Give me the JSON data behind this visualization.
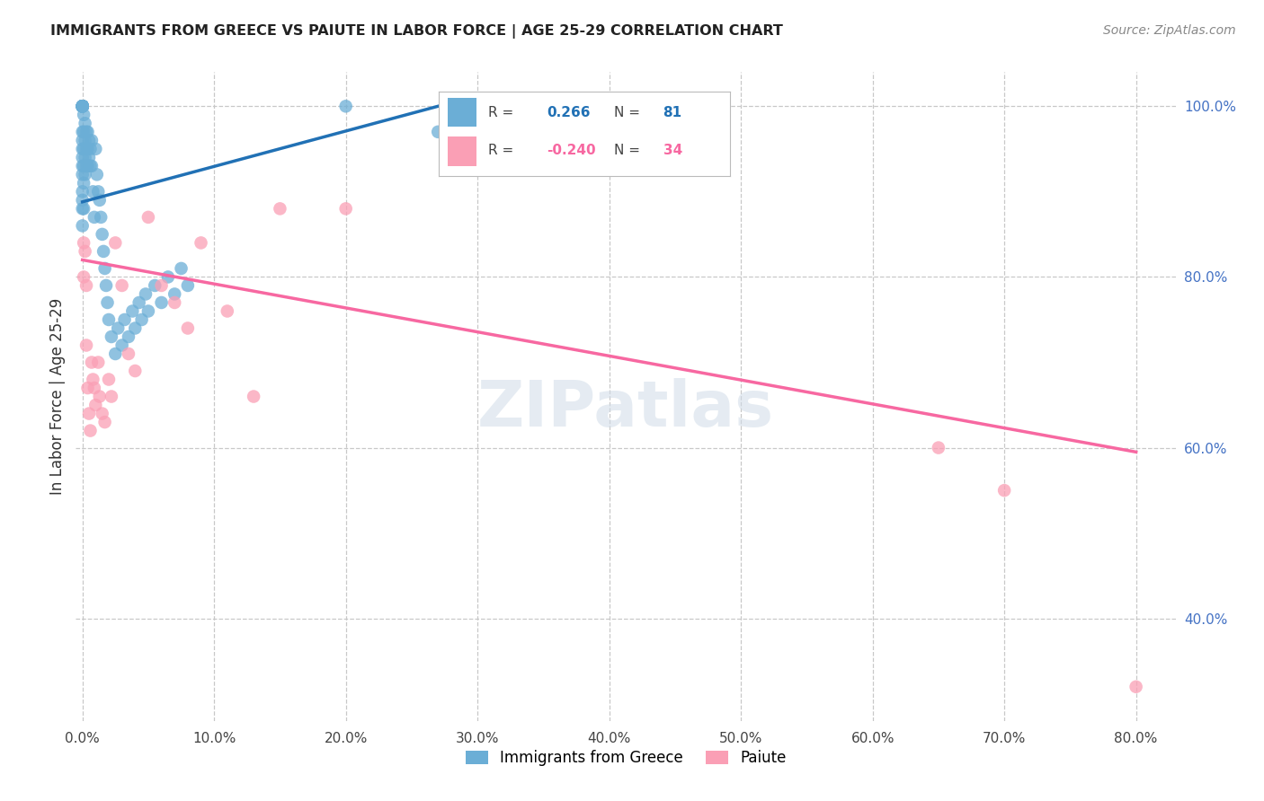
{
  "title": "IMMIGRANTS FROM GREECE VS PAIUTE IN LABOR FORCE | AGE 25-29 CORRELATION CHART",
  "source": "Source: ZipAtlas.com",
  "ylabel": "In Labor Force | Age 25-29",
  "legend_label1": "Immigrants from Greece",
  "legend_label2": "Paiute",
  "blue_color": "#6baed6",
  "pink_color": "#fa9fb5",
  "blue_line_color": "#2171b5",
  "pink_line_color": "#f768a1",
  "background_color": "#ffffff",
  "grid_color": "#c8c8c8",
  "blue_x": [
    0.0,
    0.0,
    0.0,
    0.0,
    0.0,
    0.0,
    0.0,
    0.0,
    0.0,
    0.0,
    0.0,
    0.0,
    0.0,
    0.0,
    0.0,
    0.0,
    0.0,
    0.0,
    0.0,
    0.0,
    0.0,
    0.0,
    0.0,
    0.0,
    0.0,
    0.0,
    0.001,
    0.001,
    0.001,
    0.001,
    0.001,
    0.001,
    0.002,
    0.002,
    0.002,
    0.002,
    0.003,
    0.003,
    0.003,
    0.004,
    0.004,
    0.004,
    0.005,
    0.005,
    0.006,
    0.006,
    0.007,
    0.007,
    0.008,
    0.009,
    0.01,
    0.011,
    0.012,
    0.013,
    0.014,
    0.015,
    0.016,
    0.017,
    0.018,
    0.019,
    0.02,
    0.022,
    0.025,
    0.027,
    0.03,
    0.032,
    0.035,
    0.038,
    0.04,
    0.043,
    0.045,
    0.048,
    0.05,
    0.055,
    0.06,
    0.065,
    0.07,
    0.075,
    0.08,
    0.2,
    0.27
  ],
  "blue_y": [
    1.0,
    1.0,
    1.0,
    1.0,
    1.0,
    1.0,
    1.0,
    1.0,
    1.0,
    1.0,
    1.0,
    1.0,
    1.0,
    1.0,
    1.0,
    1.0,
    0.97,
    0.96,
    0.95,
    0.94,
    0.93,
    0.92,
    0.9,
    0.89,
    0.88,
    0.86,
    0.99,
    0.97,
    0.95,
    0.93,
    0.91,
    0.88,
    0.98,
    0.96,
    0.94,
    0.92,
    0.97,
    0.95,
    0.93,
    0.97,
    0.95,
    0.93,
    0.96,
    0.94,
    0.95,
    0.93,
    0.96,
    0.93,
    0.9,
    0.87,
    0.95,
    0.92,
    0.9,
    0.89,
    0.87,
    0.85,
    0.83,
    0.81,
    0.79,
    0.77,
    0.75,
    0.73,
    0.71,
    0.74,
    0.72,
    0.75,
    0.73,
    0.76,
    0.74,
    0.77,
    0.75,
    0.78,
    0.76,
    0.79,
    0.77,
    0.8,
    0.78,
    0.81,
    0.79,
    1.0,
    0.97
  ],
  "pink_x": [
    0.001,
    0.001,
    0.002,
    0.003,
    0.003,
    0.004,
    0.005,
    0.006,
    0.007,
    0.008,
    0.009,
    0.01,
    0.012,
    0.013,
    0.015,
    0.017,
    0.02,
    0.022,
    0.025,
    0.03,
    0.035,
    0.04,
    0.05,
    0.06,
    0.07,
    0.08,
    0.09,
    0.11,
    0.13,
    0.15,
    0.2,
    0.65,
    0.7,
    0.8
  ],
  "pink_y": [
    0.84,
    0.8,
    0.83,
    0.79,
    0.72,
    0.67,
    0.64,
    0.62,
    0.7,
    0.68,
    0.67,
    0.65,
    0.7,
    0.66,
    0.64,
    0.63,
    0.68,
    0.66,
    0.84,
    0.79,
    0.71,
    0.69,
    0.87,
    0.79,
    0.77,
    0.74,
    0.84,
    0.76,
    0.66,
    0.88,
    0.88,
    0.6,
    0.55,
    0.32
  ],
  "blue_line_x0": 0.0,
  "blue_line_y0": 0.888,
  "blue_line_x1": 0.27,
  "blue_line_y1": 1.0,
  "pink_line_x0": 0.0,
  "pink_line_y0": 0.82,
  "pink_line_x1": 0.8,
  "pink_line_y1": 0.595,
  "xlim_min": -0.005,
  "xlim_max": 0.83,
  "ylim_min": 0.28,
  "ylim_max": 1.04,
  "xticks": [
    0.0,
    0.1,
    0.2,
    0.3,
    0.4,
    0.5,
    0.6,
    0.7,
    0.8
  ],
  "yticks_right": [
    1.0,
    0.8,
    0.6,
    0.4
  ],
  "yticks_right_labels": [
    "100.0%",
    "80.0%",
    "60.0%",
    "40.0%"
  ],
  "right_axis_color": "#4472C4",
  "title_fontsize": 11.5,
  "source_fontsize": 10,
  "tick_fontsize": 11
}
